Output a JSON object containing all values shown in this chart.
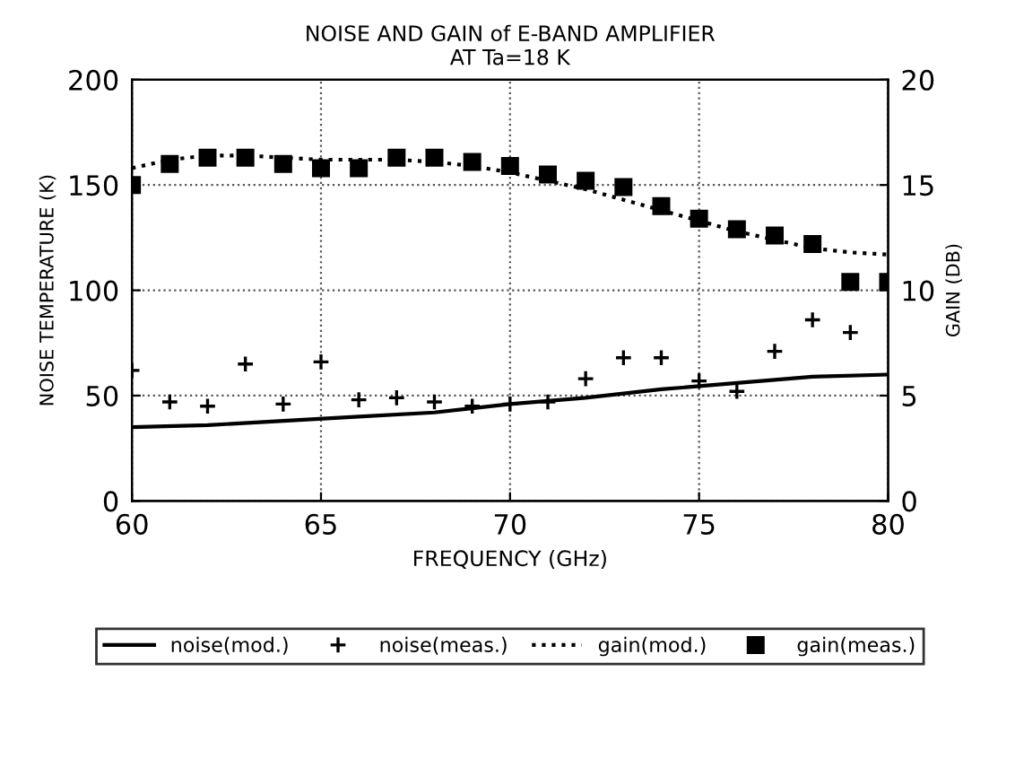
{
  "chart_data": {
    "type": "line",
    "title": "NOISE AND GAIN of E-BAND AMPLIFIER\nAT Ta=18 K",
    "xlabel": "FREQUENCY (GHz)",
    "ylabel": "NOISE TEMPERATURE (K)",
    "y2label": "GAIN (DB)",
    "xlim": [
      60,
      80
    ],
    "xticks": [
      60,
      65,
      70,
      75,
      80
    ],
    "ylim": [
      0,
      200
    ],
    "yticks": [
      0,
      50,
      100,
      150,
      200
    ],
    "y2lim": [
      0,
      20
    ],
    "y2ticks": [
      0,
      5,
      10,
      15,
      20
    ],
    "grid": true,
    "legend": "bottom",
    "series": [
      {
        "name": "noise(mod.)",
        "color": "#000000",
        "line_style": "solid",
        "marker": "none",
        "x": [
          60,
          62,
          64,
          66,
          68,
          70,
          72,
          74,
          76,
          78,
          80
        ],
        "values": [
          35,
          36,
          38,
          40,
          42,
          46,
          49,
          53,
          56,
          59,
          60
        ]
      },
      {
        "name": "noise(meas.)",
        "type": "scatter",
        "color": "#000000",
        "marker": "cross",
        "x": [
          60,
          61,
          62,
          63,
          64,
          65,
          66,
          67,
          68,
          69,
          70,
          71,
          72,
          73,
          74,
          75,
          76,
          77,
          78,
          79
        ],
        "values": [
          62,
          47,
          45,
          65,
          46,
          66,
          48,
          49,
          47,
          45,
          46,
          47,
          58,
          68,
          68,
          57,
          52,
          71,
          86,
          80
        ]
      },
      {
        "name": "gain(mod.)",
        "axis": "y2",
        "color": "#000000",
        "line_style": "dotted",
        "marker": "none",
        "x": [
          60,
          61,
          62,
          63,
          64,
          65,
          66,
          67,
          68,
          69,
          70,
          71,
          72,
          73,
          74,
          75,
          76,
          77,
          78,
          79,
          80
        ],
        "values": [
          15.8,
          16.2,
          16.4,
          16.4,
          16.3,
          16.2,
          16.2,
          16.2,
          16.1,
          15.9,
          15.6,
          15.2,
          14.8,
          14.3,
          13.8,
          13.3,
          12.8,
          12.4,
          12.0,
          11.8,
          11.7
        ]
      },
      {
        "name": "gain(meas.)",
        "type": "scatter",
        "axis": "y2",
        "color": "#000000",
        "marker": "square",
        "x": [
          60,
          61,
          62,
          63,
          64,
          65,
          66,
          67,
          68,
          69,
          70,
          71,
          72,
          73,
          74,
          75,
          76,
          77,
          78,
          79,
          80
        ],
        "values": [
          15.0,
          16.0,
          16.3,
          16.3,
          16.0,
          15.8,
          15.8,
          16.3,
          16.3,
          16.1,
          15.9,
          15.5,
          15.2,
          14.9,
          14.0,
          13.4,
          12.9,
          12.6,
          12.2,
          10.4,
          10.4
        ]
      }
    ]
  }
}
